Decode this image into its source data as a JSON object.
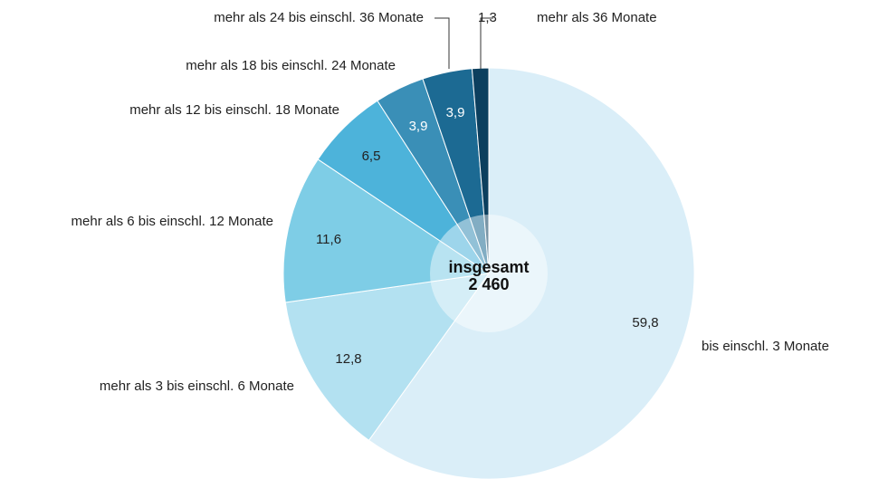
{
  "chart_data": {
    "type": "pie",
    "center_label": "insgesamt",
    "center_total": "2 460",
    "categories": [
      "bis einschl. 3 Monate",
      "mehr als 3 bis einschl. 6 Monate",
      "mehr als 6 bis einschl. 12 Monate",
      "mehr als 12 bis einschl. 18 Monate",
      "mehr als 18 bis einschl. 24 Monate",
      "mehr als 24 bis einschl. 36 Monate",
      "mehr als 36 Monate"
    ],
    "values": [
      59.8,
      12.8,
      11.6,
      6.5,
      3.9,
      3.9,
      1.3
    ],
    "value_labels": [
      "59,8",
      "12,8",
      "11,6",
      "6,5",
      "3,9",
      "3,9",
      "1,3"
    ],
    "colors": [
      "#daeef8",
      "#b3e1f1",
      "#7ecde6",
      "#4db3da",
      "#3a8fb7",
      "#1c6a93",
      "#0c3f5e"
    ]
  }
}
